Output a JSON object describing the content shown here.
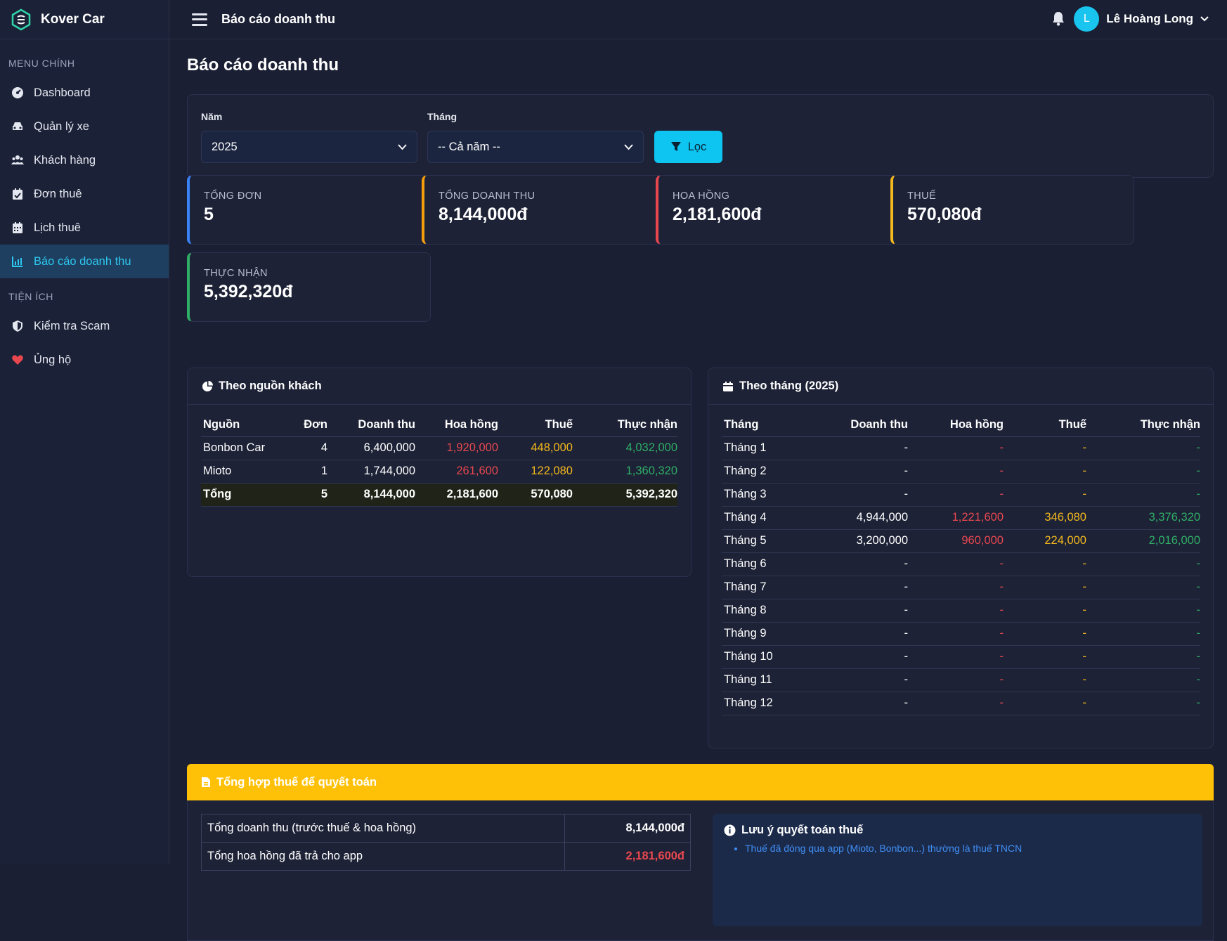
{
  "brand": {
    "name": "Kover Car"
  },
  "sidebar": {
    "section_main": "MENU CHÍNH",
    "items": [
      {
        "label": "Dashboard",
        "icon": "dashboard-icon"
      },
      {
        "label": "Quản lý xe",
        "icon": "car-icon"
      },
      {
        "label": "Khách hàng",
        "icon": "users-icon"
      },
      {
        "label": "Đơn thuê",
        "icon": "calendar-check-icon"
      },
      {
        "label": "Lịch thuê",
        "icon": "calendar-icon"
      },
      {
        "label": "Báo cáo doanh thu",
        "icon": "chart-icon",
        "active": true
      }
    ],
    "section_util": "TIỆN ÍCH",
    "util_items": [
      {
        "label": "Kiểm tra Scam",
        "icon": "shield-icon"
      },
      {
        "label": "Ủng hộ",
        "icon": "heart-icon"
      }
    ]
  },
  "header": {
    "title": "Báo cáo doanh thu",
    "user_initial": "L",
    "user_name": "Lê Hoàng Long"
  },
  "page": {
    "title": "Báo cáo doanh thu"
  },
  "filter": {
    "year_label": "Năm",
    "year_value": "2025",
    "month_label": "Tháng",
    "month_value": "-- Cả năm --",
    "button": "Lọc"
  },
  "stats": [
    {
      "label": "TỔNG ĐƠN",
      "value": "5",
      "color": "#3b82f6"
    },
    {
      "label": "TỔNG DOANH THU",
      "value": "8,144,000đ",
      "color": "#f59e0b"
    },
    {
      "label": "HOA HỒNG",
      "value": "2,181,600đ",
      "color": "#e8474f"
    },
    {
      "label": "THUẾ",
      "value": "570,080đ",
      "color": "#f3b81d"
    },
    {
      "label": "THỰC NHẬN",
      "value": "5,392,320đ",
      "color": "#2fae66"
    }
  ],
  "source_table": {
    "title": "Theo nguồn khách",
    "headers": [
      "Nguồn",
      "Đơn",
      "Doanh thu",
      "Hoa hồng",
      "Thuế",
      "Thực nhận"
    ],
    "rows": [
      [
        "Bonbon Car",
        "4",
        "6,400,000",
        "1,920,000",
        "448,000",
        "4,032,000"
      ],
      [
        "Mioto",
        "1",
        "1,744,000",
        "261,600",
        "122,080",
        "1,360,320"
      ]
    ],
    "total": [
      "Tổng",
      "5",
      "8,144,000",
      "2,181,600",
      "570,080",
      "5,392,320"
    ]
  },
  "month_table": {
    "title": "Theo tháng (2025)",
    "headers": [
      "Tháng",
      "Doanh thu",
      "Hoa hồng",
      "Thuế",
      "Thực nhận"
    ],
    "rows": [
      [
        "Tháng 1",
        "-",
        "-",
        "-",
        "-"
      ],
      [
        "Tháng 2",
        "-",
        "-",
        "-",
        "-"
      ],
      [
        "Tháng 3",
        "-",
        "-",
        "-",
        "-"
      ],
      [
        "Tháng 4",
        "4,944,000",
        "1,221,600",
        "346,080",
        "3,376,320"
      ],
      [
        "Tháng 5",
        "3,200,000",
        "960,000",
        "224,000",
        "2,016,000"
      ],
      [
        "Tháng 6",
        "-",
        "-",
        "-",
        "-"
      ],
      [
        "Tháng 7",
        "-",
        "-",
        "-",
        "-"
      ],
      [
        "Tháng 8",
        "-",
        "-",
        "-",
        "-"
      ],
      [
        "Tháng 9",
        "-",
        "-",
        "-",
        "-"
      ],
      [
        "Tháng 10",
        "-",
        "-",
        "-",
        "-"
      ],
      [
        "Tháng 11",
        "-",
        "-",
        "-",
        "-"
      ],
      [
        "Tháng 12",
        "-",
        "-",
        "-",
        "-"
      ]
    ]
  },
  "tax_summary": {
    "title": "Tổng hợp thuế để quyết toán",
    "rows": [
      [
        "Tổng doanh thu (trước thuế & hoa hồng)",
        "8,144,000đ"
      ],
      [
        "Tổng hoa hồng đã trả cho app",
        "2,181,600đ"
      ]
    ],
    "note_title": "Lưu ý quyết toán thuế",
    "note_items": [
      "Thuế đã đóng qua app (Mioto, Bonbon...) thường là thuế TNCN"
    ]
  }
}
